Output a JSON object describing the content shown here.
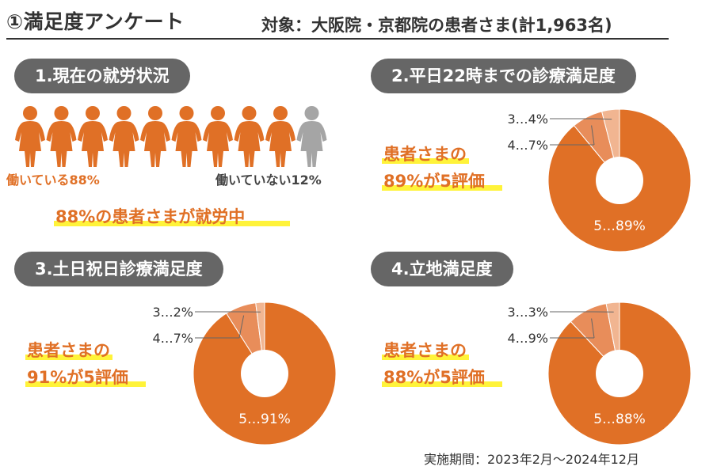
{
  "header": {
    "title": "①満足度アンケート",
    "subtitle": "対象：大阪院・京都院の患者さま(計1,963名)"
  },
  "colors": {
    "accent": "#e07026",
    "accent_mid": "#e88d5a",
    "accent_light": "#f1b591",
    "gray": "#a5a5a5",
    "pill": "#666666",
    "highlight": "#fff33a"
  },
  "section1": {
    "heading": "1.現在の就労状況",
    "people": [
      "working",
      "working",
      "working",
      "working",
      "working",
      "working",
      "working",
      "working",
      "working",
      "not-working"
    ],
    "label_working": "働いている88%",
    "label_not_working": "働いていない12%",
    "summary": "88%の患者さまが就労中"
  },
  "section2": {
    "heading": "2.平日22時までの診療満足度",
    "line1": "患者さまの",
    "line2": "89%が5評価"
  },
  "section3": {
    "heading": "3.土日祝日診療満足度",
    "line1": "患者さまの",
    "line2": "91%が5評価"
  },
  "section4": {
    "heading": "4.立地満足度",
    "line1": "患者さまの",
    "line2": "88%が5評価"
  },
  "chart_data": [
    {
      "type": "pie",
      "title": "1.現在の就労状況",
      "categories": [
        "働いている",
        "働いていない"
      ],
      "values": [
        88,
        12
      ]
    },
    {
      "type": "pie",
      "title": "2.平日22時までの診療満足度",
      "categories": [
        "5",
        "4",
        "3"
      ],
      "values": [
        89,
        7,
        4
      ],
      "labels": [
        "5…89%",
        "4…7%",
        "3…4%"
      ]
    },
    {
      "type": "pie",
      "title": "3.土日祝日診療満足度",
      "categories": [
        "5",
        "4",
        "3"
      ],
      "values": [
        91,
        7,
        2
      ],
      "labels": [
        "5…91%",
        "4…7%",
        "3…2%"
      ]
    },
    {
      "type": "pie",
      "title": "4.立地満足度",
      "categories": [
        "5",
        "4",
        "3"
      ],
      "values": [
        88,
        9,
        3
      ],
      "labels": [
        "5…88%",
        "4…9%",
        "3…3%"
      ]
    }
  ],
  "footer": {
    "period": "実施期間：2023年2月〜2024年12月"
  }
}
